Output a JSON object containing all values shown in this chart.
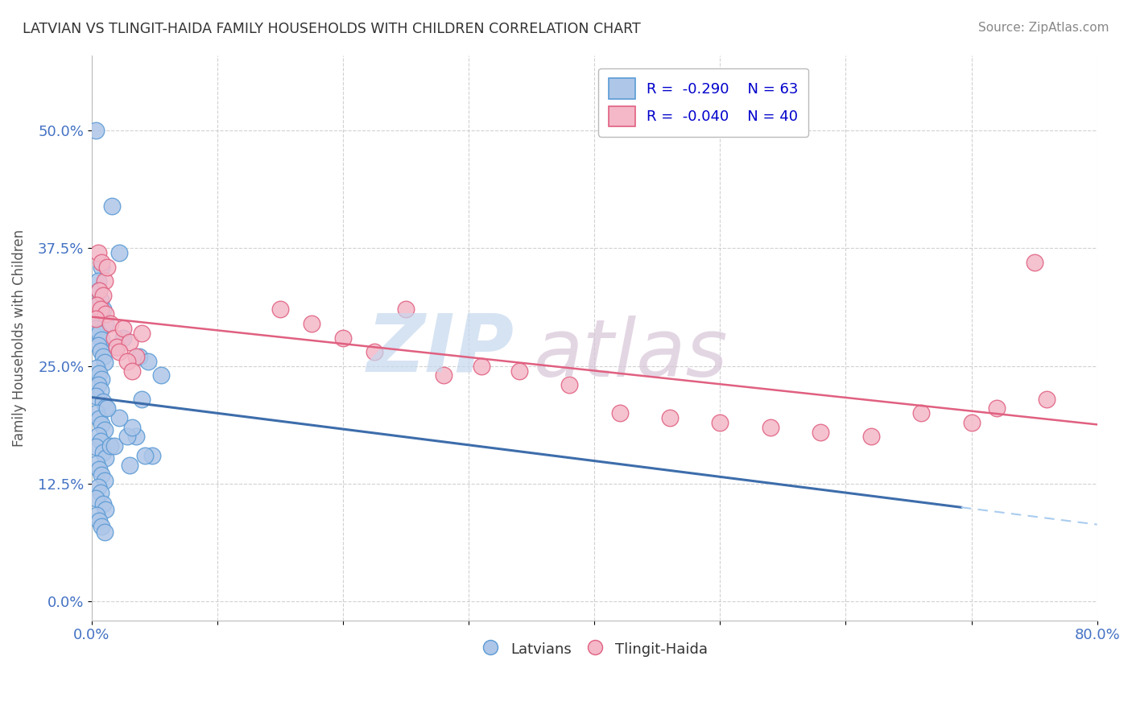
{
  "title": "LATVIAN VS TLINGIT-HAIDA FAMILY HOUSEHOLDS WITH CHILDREN CORRELATION CHART",
  "source": "Source: ZipAtlas.com",
  "ylabel": "Family Households with Children",
  "xlim": [
    0.0,
    0.8
  ],
  "ylim": [
    -0.02,
    0.58
  ],
  "yticks": [
    0.0,
    0.125,
    0.25,
    0.375,
    0.5
  ],
  "ytick_labels": [
    "0.0%",
    "12.5%",
    "25.0%",
    "37.5%",
    "50.0%"
  ],
  "xtick_positions": [
    0.0,
    0.1,
    0.2,
    0.3,
    0.4,
    0.5,
    0.6,
    0.7,
    0.8
  ],
  "xtick_labels": [
    "0.0%",
    "",
    "",
    "",
    "",
    "",
    "",
    "",
    "80.0%"
  ],
  "latvian_color": "#aec6e8",
  "latvian_edge": "#5b9bd5",
  "tlingit_color": "#f4b8c8",
  "tlingit_edge": "#e06080",
  "latvian_line_color": "#3d6dab",
  "tlingit_line_color": "#e06080",
  "dashed_line_color": "#aaccee",
  "legend_latvian_label": "R =  -0.290    N = 63",
  "legend_tlingit_label": "R =  -0.040    N = 40",
  "latvian_R": -0.29,
  "tlingit_R": -0.04,
  "latvian_N": 63,
  "tlingit_N": 40,
  "latvian_x": [
    0.003,
    0.016,
    0.022,
    0.008,
    0.005,
    0.006,
    0.007,
    0.009,
    0.004,
    0.011,
    0.003,
    0.006,
    0.008,
    0.005,
    0.007,
    0.009,
    0.01,
    0.004,
    0.006,
    0.008,
    0.005,
    0.007,
    0.003,
    0.009,
    0.011,
    0.004,
    0.006,
    0.008,
    0.01,
    0.005,
    0.007,
    0.003,
    0.009,
    0.011,
    0.004,
    0.006,
    0.008,
    0.01,
    0.005,
    0.007,
    0.003,
    0.009,
    0.011,
    0.004,
    0.006,
    0.008,
    0.01,
    0.038,
    0.025,
    0.045,
    0.02,
    0.055,
    0.035,
    0.015,
    0.048,
    0.03,
    0.042,
    0.018,
    0.028,
    0.032,
    0.022,
    0.012,
    0.04
  ],
  "latvian_y": [
    0.5,
    0.42,
    0.37,
    0.355,
    0.34,
    0.33,
    0.32,
    0.31,
    0.3,
    0.295,
    0.29,
    0.285,
    0.278,
    0.272,
    0.266,
    0.26,
    0.254,
    0.248,
    0.242,
    0.236,
    0.23,
    0.224,
    0.218,
    0.212,
    0.206,
    0.2,
    0.194,
    0.188,
    0.182,
    0.176,
    0.17,
    0.164,
    0.158,
    0.152,
    0.146,
    0.14,
    0.134,
    0.128,
    0.122,
    0.116,
    0.11,
    0.104,
    0.098,
    0.092,
    0.086,
    0.08,
    0.074,
    0.26,
    0.28,
    0.255,
    0.27,
    0.24,
    0.175,
    0.165,
    0.155,
    0.145,
    0.155,
    0.165,
    0.175,
    0.185,
    0.195,
    0.205,
    0.215
  ],
  "tlingit_x": [
    0.005,
    0.008,
    0.01,
    0.012,
    0.006,
    0.009,
    0.004,
    0.007,
    0.011,
    0.003,
    0.015,
    0.018,
    0.02,
    0.025,
    0.03,
    0.035,
    0.04,
    0.022,
    0.028,
    0.032,
    0.15,
    0.175,
    0.2,
    0.225,
    0.25,
    0.28,
    0.31,
    0.34,
    0.38,
    0.42,
    0.46,
    0.5,
    0.54,
    0.58,
    0.62,
    0.66,
    0.7,
    0.75,
    0.72,
    0.76
  ],
  "tlingit_y": [
    0.37,
    0.36,
    0.34,
    0.355,
    0.33,
    0.325,
    0.315,
    0.31,
    0.305,
    0.3,
    0.295,
    0.28,
    0.27,
    0.29,
    0.275,
    0.26,
    0.285,
    0.265,
    0.255,
    0.245,
    0.31,
    0.295,
    0.28,
    0.265,
    0.31,
    0.24,
    0.25,
    0.245,
    0.23,
    0.2,
    0.195,
    0.19,
    0.185,
    0.18,
    0.175,
    0.2,
    0.19,
    0.36,
    0.205,
    0.215
  ],
  "watermark_zip_color": "#c5d8ee",
  "watermark_atlas_color": "#d8c5d8",
  "background_color": "#ffffff",
  "grid_color": "#cccccc",
  "title_color": "#333333",
  "axis_label_color": "#555555",
  "tick_color": "#4472c4",
  "source_color": "#888888"
}
